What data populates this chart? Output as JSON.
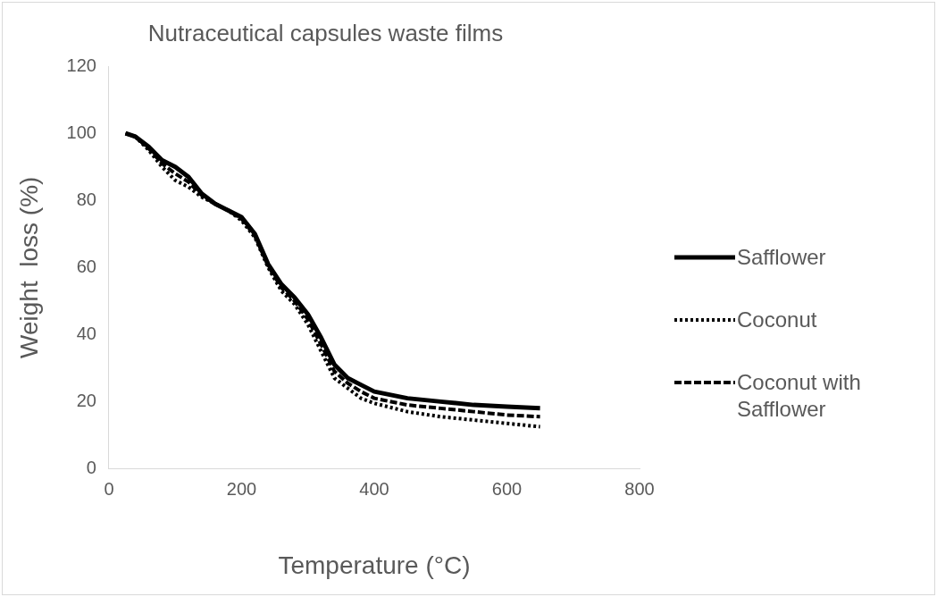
{
  "chart_data": {
    "type": "line",
    "title": "Nutraceutical capsules waste films",
    "xlabel": "Temperature (°C)",
    "ylabel": "Weight  loss (%)",
    "xlim": [
      0,
      800
    ],
    "xticks": [
      0,
      200,
      400,
      600,
      800
    ],
    "ylim": [
      0,
      120
    ],
    "yticks": [
      0,
      20,
      40,
      60,
      80,
      100,
      120
    ],
    "grid": false,
    "legend": "right",
    "marker": "none",
    "series": [
      {
        "name": "Safflower",
        "color": "#000000",
        "line_style": "solid",
        "x": [
          25,
          40,
          60,
          80,
          100,
          120,
          140,
          160,
          180,
          200,
          220,
          240,
          260,
          280,
          300,
          320,
          340,
          360,
          380,
          400,
          450,
          500,
          550,
          600,
          650
        ],
        "values": [
          100,
          99,
          96,
          92,
          90,
          87,
          82,
          79,
          77,
          75,
          70,
          61,
          55,
          51,
          46,
          39,
          31,
          27,
          25,
          23,
          21,
          20,
          19,
          18.5,
          18
        ]
      },
      {
        "name": "Coconut",
        "color": "#000000",
        "line_style": "dotted",
        "x": [
          25,
          40,
          60,
          80,
          100,
          120,
          140,
          160,
          180,
          200,
          220,
          240,
          260,
          280,
          300,
          320,
          340,
          360,
          380,
          400,
          450,
          500,
          550,
          600,
          650
        ],
        "values": [
          100,
          99,
          95,
          90,
          86,
          84,
          81,
          79,
          77,
          74,
          69,
          60,
          53,
          49,
          43,
          35,
          27,
          24,
          21,
          19.5,
          17,
          15.5,
          14.5,
          13.5,
          12.5
        ]
      },
      {
        "name": "Coconut with Safflower",
        "color": "#000000",
        "line_style": "dashed",
        "x": [
          25,
          40,
          60,
          80,
          100,
          120,
          140,
          160,
          180,
          200,
          220,
          240,
          260,
          280,
          300,
          320,
          340,
          360,
          380,
          400,
          450,
          500,
          550,
          600,
          650
        ],
        "values": [
          100,
          99,
          95.5,
          91,
          88,
          85.5,
          81.5,
          79,
          77,
          74.5,
          69.5,
          60.5,
          54,
          50,
          44.5,
          37,
          29,
          25.5,
          23,
          21,
          19,
          18,
          17,
          16,
          15.5
        ]
      }
    ]
  }
}
